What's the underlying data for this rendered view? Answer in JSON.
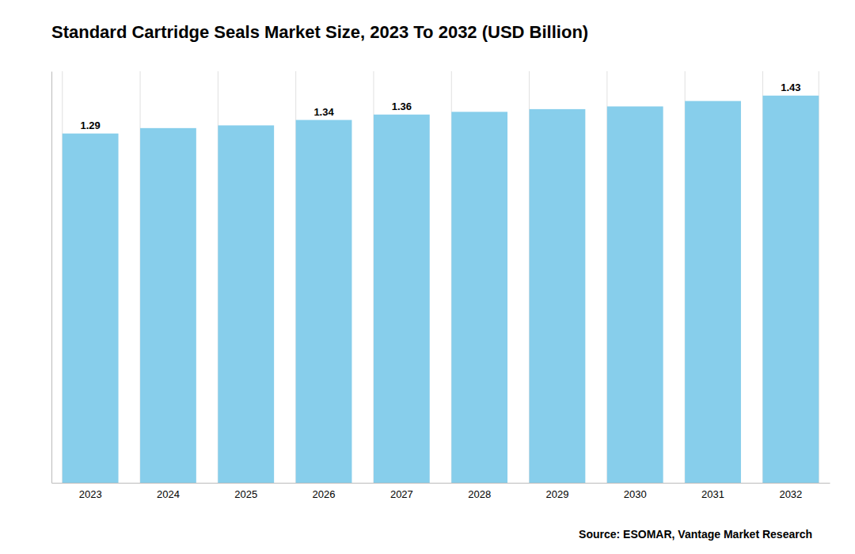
{
  "chart_data": {
    "type": "bar",
    "title": "Standard Cartridge Seals Market Size, 2023 To 2032 (USD Billion)",
    "categories": [
      "2023",
      "2024",
      "2025",
      "2026",
      "2027",
      "2028",
      "2029",
      "2030",
      "2031",
      "2032"
    ],
    "values": [
      1.29,
      1.31,
      1.32,
      1.34,
      1.36,
      1.37,
      1.38,
      1.39,
      1.41,
      1.43
    ],
    "value_labels": [
      "1.29",
      null,
      null,
      "1.34",
      "1.36",
      null,
      null,
      null,
      null,
      "1.43"
    ],
    "data_labels": true,
    "color": "#87CEEB",
    "ylim": [
      0,
      1.52
    ],
    "grid": true,
    "tick_labels": "x",
    "annotations": [
      "Source: ESOMAR, Vantage Market Research"
    ]
  }
}
